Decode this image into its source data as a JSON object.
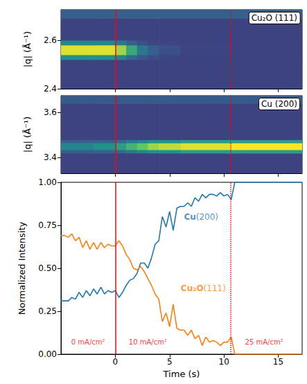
{
  "chart_data": [
    {
      "type": "heatmap",
      "title": "Cu₂O (111)",
      "ylabel": "|q| (Å⁻¹)",
      "xlim": [
        -5,
        17.2
      ],
      "xticks": [
        0,
        5,
        10,
        15
      ],
      "ylim": [
        2.4,
        2.725
      ],
      "yticks": [
        2.4,
        2.6
      ],
      "tick_labels": "y",
      "value_range": [
        0,
        1
      ],
      "x_edges": [
        -5,
        -2,
        0,
        1,
        2,
        3,
        4,
        6,
        10.6,
        17.2
      ],
      "y_edges": [
        2.4,
        2.52,
        2.54,
        2.58,
        2.6,
        2.69,
        2.725
      ],
      "cells": [
        [
          0.2,
          0.2,
          0.2,
          0.2,
          0.2,
          0.2,
          0.2,
          0.2,
          0.2
        ],
        [
          0.5,
          0.5,
          0.45,
          0.35,
          0.27,
          0.23,
          0.21,
          0.2,
          0.2
        ],
        [
          0.95,
          0.95,
          0.85,
          0.6,
          0.4,
          0.3,
          0.24,
          0.21,
          0.2
        ],
        [
          0.45,
          0.45,
          0.4,
          0.3,
          0.24,
          0.22,
          0.21,
          0.2,
          0.2
        ],
        [
          0.2,
          0.2,
          0.2,
          0.2,
          0.2,
          0.2,
          0.2,
          0.2,
          0.2
        ],
        [
          0.3,
          0.3,
          0.3,
          0.3,
          0.3,
          0.3,
          0.3,
          0.3,
          0.3
        ]
      ],
      "vlines": [
        {
          "x": 0,
          "line_style": "solid",
          "color": "#ff0000"
        },
        {
          "x": 10.6,
          "line_style": "dotted",
          "color": "#ff0000"
        }
      ]
    },
    {
      "type": "heatmap",
      "title": "Cu (200)",
      "ylabel": "|q| (Å⁻¹)",
      "xlim": [
        -5,
        17.2
      ],
      "xticks": [
        0,
        5,
        10,
        15
      ],
      "ylim": [
        3.33,
        3.675
      ],
      "yticks": [
        3.4,
        3.6
      ],
      "tick_labels": "y",
      "value_range": [
        0,
        1
      ],
      "x_edges": [
        -5,
        -2,
        0,
        1,
        2,
        3,
        4,
        6,
        10.6,
        17.2
      ],
      "y_edges": [
        3.33,
        3.42,
        3.435,
        3.465,
        3.48,
        3.64,
        3.675
      ],
      "cells": [
        [
          0.2,
          0.2,
          0.2,
          0.2,
          0.2,
          0.2,
          0.2,
          0.2,
          0.2
        ],
        [
          0.3,
          0.32,
          0.35,
          0.4,
          0.45,
          0.5,
          0.5,
          0.55,
          0.55
        ],
        [
          0.45,
          0.5,
          0.55,
          0.65,
          0.75,
          0.85,
          0.9,
          0.95,
          1.0
        ],
        [
          0.3,
          0.32,
          0.35,
          0.4,
          0.45,
          0.5,
          0.5,
          0.55,
          0.55
        ],
        [
          0.2,
          0.2,
          0.2,
          0.2,
          0.2,
          0.2,
          0.2,
          0.2,
          0.2
        ],
        [
          0.28,
          0.28,
          0.28,
          0.28,
          0.28,
          0.28,
          0.28,
          0.28,
          0.28
        ]
      ],
      "vlines": [
        {
          "x": 0,
          "line_style": "solid",
          "color": "#ff0000"
        },
        {
          "x": 10.6,
          "line_style": "dotted",
          "color": "#ff0000"
        }
      ]
    },
    {
      "type": "line",
      "xlabel": "Time (s)",
      "ylabel": "Normalized Intensity",
      "xlim": [
        -5,
        17.2
      ],
      "xticks": [
        0,
        5,
        10,
        15
      ],
      "ylim": [
        0,
        1
      ],
      "yticks": [
        {
          "value": 0,
          "label": "0.00"
        },
        {
          "value": 0.25,
          "label": "0.25"
        },
        {
          "value": 0.5,
          "label": "0.50"
        },
        {
          "value": 0.75,
          "label": "0.75"
        },
        {
          "value": 1,
          "label": "1.00"
        }
      ],
      "x": [
        -5,
        -4.67,
        -4.33,
        -4,
        -3.67,
        -3.33,
        -3,
        -2.67,
        -2.33,
        -2,
        -1.67,
        -1.33,
        -1,
        -0.67,
        -0.33,
        0,
        0.33,
        0.67,
        1,
        1.33,
        1.67,
        2,
        2.33,
        2.67,
        3,
        3.33,
        3.67,
        4,
        4.33,
        4.67,
        5,
        5.33,
        5.67,
        6,
        6.33,
        6.67,
        7,
        7.33,
        7.67,
        8,
        8.33,
        8.67,
        9,
        9.33,
        9.67,
        10,
        10.33,
        10.67,
        11,
        17.2
      ],
      "series": [
        {
          "name": "Cu(200)",
          "color": "#1f77b4",
          "annotation": {
            "x": 7.9,
            "y": 0.8
          },
          "values": [
            0.31,
            0.31,
            0.31,
            0.33,
            0.32,
            0.36,
            0.33,
            0.37,
            0.34,
            0.38,
            0.35,
            0.39,
            0.35,
            0.37,
            0.36,
            0.37,
            0.33,
            0.36,
            0.4,
            0.43,
            0.44,
            0.47,
            0.53,
            0.53,
            0.5,
            0.56,
            0.64,
            0.66,
            0.8,
            0.74,
            0.83,
            0.72,
            0.85,
            0.86,
            0.86,
            0.88,
            0.86,
            0.91,
            0.89,
            0.93,
            0.91,
            0.93,
            0.93,
            0.92,
            0.94,
            0.92,
            0.93,
            0.9,
            1.0,
            1.0
          ]
        },
        {
          "name": "Cu₂O(111)",
          "color": "#ff7f0e",
          "annotation": {
            "x": 8.1,
            "y": 0.385
          },
          "values": [
            0.69,
            0.69,
            0.68,
            0.7,
            0.66,
            0.68,
            0.62,
            0.66,
            0.61,
            0.65,
            0.61,
            0.65,
            0.62,
            0.64,
            0.63,
            0.63,
            0.66,
            0.63,
            0.58,
            0.55,
            0.5,
            0.49,
            0.51,
            0.48,
            0.44,
            0.4,
            0.35,
            0.32,
            0.19,
            0.24,
            0.16,
            0.29,
            0.15,
            0.14,
            0.14,
            0.11,
            0.14,
            0.09,
            0.11,
            0.05,
            0.1,
            0.07,
            0.08,
            0.07,
            0.05,
            0.07,
            0.07,
            0.1,
            0.0,
            0.0
          ]
        }
      ],
      "annotations": [
        {
          "text": "0 mA/cm²",
          "x": -2.5,
          "y": 0.07,
          "color": "#ff0000"
        },
        {
          "text": "10 mA/cm²",
          "x": 3.0,
          "y": 0.07,
          "color": "#ff0000"
        },
        {
          "text": "25 mA/cm²",
          "x": 13.7,
          "y": 0.07,
          "color": "#ff0000"
        }
      ],
      "vlines": [
        {
          "x": 0,
          "line_style": "solid",
          "color": "#ff0000"
        },
        {
          "x": 10.6,
          "line_style": "dotted",
          "color": "#ff0000"
        }
      ]
    }
  ]
}
